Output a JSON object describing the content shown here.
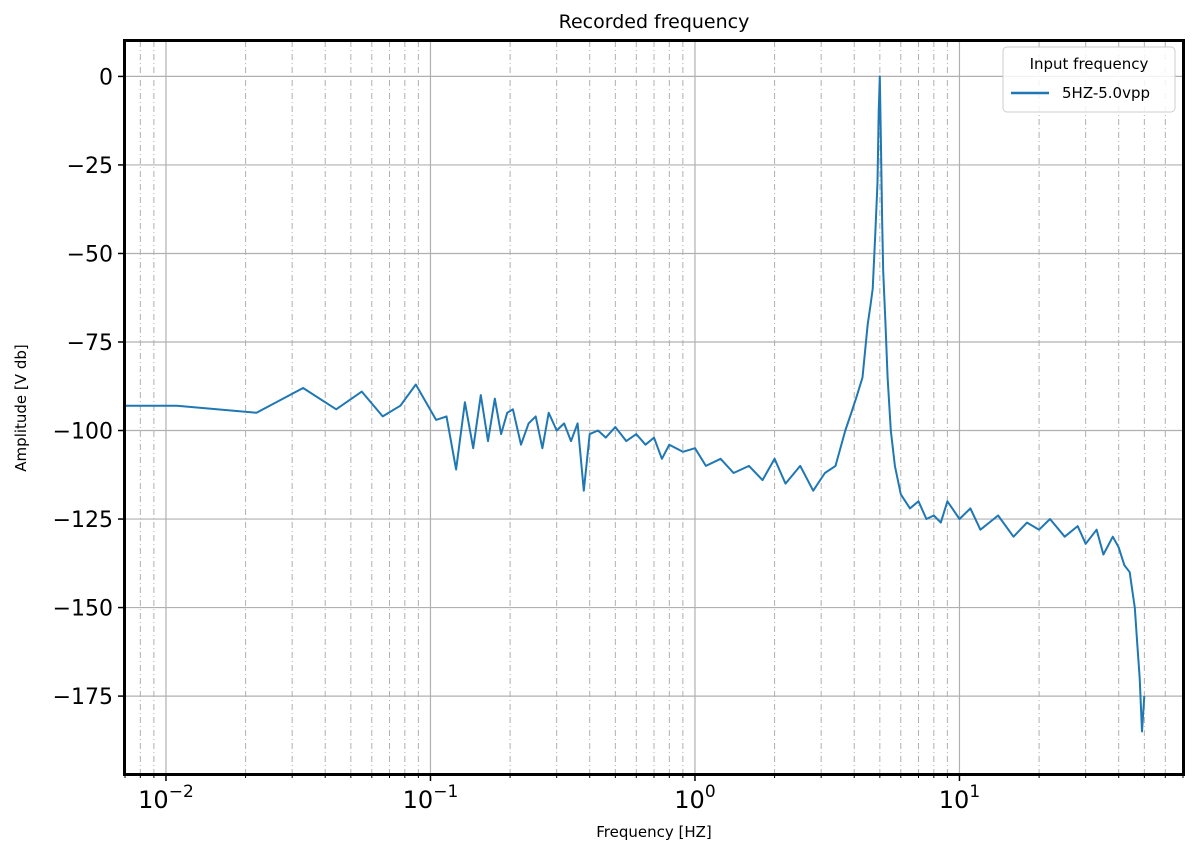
{
  "chart_data": {
    "type": "line",
    "title": "Recorded frequency",
    "xlabel": "Frequency [HZ]",
    "ylabel": "Amplitude [V db]",
    "xscale": "log",
    "xlim": [
      0.007,
      70
    ],
    "ylim": [
      -197,
      10
    ],
    "yticks": [
      0,
      -25,
      -50,
      -75,
      -100,
      -125,
      -150,
      -175
    ],
    "ytick_labels": [
      "0",
      "−25",
      "−50",
      "−75",
      "−100",
      "−125",
      "−150",
      "−175"
    ],
    "xticks": [
      {
        "value": 0.01,
        "base": "10",
        "exp": "−2"
      },
      {
        "value": 0.1,
        "base": "10",
        "exp": "−1"
      },
      {
        "value": 1,
        "base": "10",
        "exp": "0"
      },
      {
        "value": 10,
        "base": "10",
        "exp": "1"
      }
    ],
    "grid": {
      "major": "solid",
      "minor": "dash-dot"
    },
    "legend": {
      "title": "Input frequency",
      "placement": "top-right"
    },
    "series": [
      {
        "name": "5HZ-5.0vpp",
        "color": "#1f77b4",
        "x": [
          0.007,
          0.011,
          0.022,
          0.033,
          0.044,
          0.055,
          0.066,
          0.077,
          0.088,
          0.105,
          0.115,
          0.125,
          0.135,
          0.145,
          0.155,
          0.165,
          0.175,
          0.185,
          0.195,
          0.205,
          0.22,
          0.235,
          0.25,
          0.265,
          0.28,
          0.3,
          0.32,
          0.34,
          0.36,
          0.38,
          0.4,
          0.43,
          0.46,
          0.5,
          0.55,
          0.6,
          0.65,
          0.7,
          0.75,
          0.8,
          0.9,
          1.0,
          1.1,
          1.25,
          1.4,
          1.6,
          1.8,
          2.0,
          2.2,
          2.5,
          2.8,
          3.1,
          3.4,
          3.7,
          3.9,
          4.1,
          4.3,
          4.5,
          4.6,
          4.7,
          4.8,
          4.9,
          4.95,
          5.0,
          5.05,
          5.1,
          5.15,
          5.25,
          5.35,
          5.5,
          5.7,
          6.0,
          6.5,
          7.0,
          7.5,
          8.0,
          8.5,
          9.0,
          10.0,
          11.0,
          12.0,
          14.0,
          16.0,
          18.0,
          20.0,
          22.0,
          25.0,
          28.0,
          30.0,
          33.0,
          35.0,
          38.0,
          40.0,
          42.0,
          44.0,
          45.0,
          46.0,
          47.0,
          48.0,
          49.0,
          50.0
        ],
        "y": [
          -93,
          -93,
          -95,
          -88,
          -94,
          -89,
          -96,
          -93,
          -87,
          -97,
          -96,
          -111,
          -92,
          -105,
          -90,
          -103,
          -91,
          -101,
          -95,
          -94,
          -104,
          -98,
          -96,
          -105,
          -95,
          -100,
          -98,
          -103,
          -98,
          -117,
          -101,
          -100,
          -102,
          -99,
          -103,
          -101,
          -104,
          -102,
          -108,
          -104,
          -106,
          -105,
          -110,
          -108,
          -112,
          -110,
          -114,
          -108,
          -115,
          -110,
          -117,
          -112,
          -110,
          -100,
          -95,
          -90,
          -85,
          -70,
          -65,
          -60,
          -45,
          -30,
          -10,
          0,
          -20,
          -40,
          -55,
          -70,
          -85,
          -100,
          -110,
          -118,
          -122,
          -120,
          -125,
          -124,
          -126,
          -120,
          -125,
          -122,
          -128,
          -124,
          -130,
          -126,
          -128,
          -125,
          -130,
          -127,
          -132,
          -128,
          -135,
          -130,
          -133,
          -138,
          -140,
          -145,
          -150,
          -160,
          -170,
          -185,
          -175
        ]
      }
    ]
  }
}
